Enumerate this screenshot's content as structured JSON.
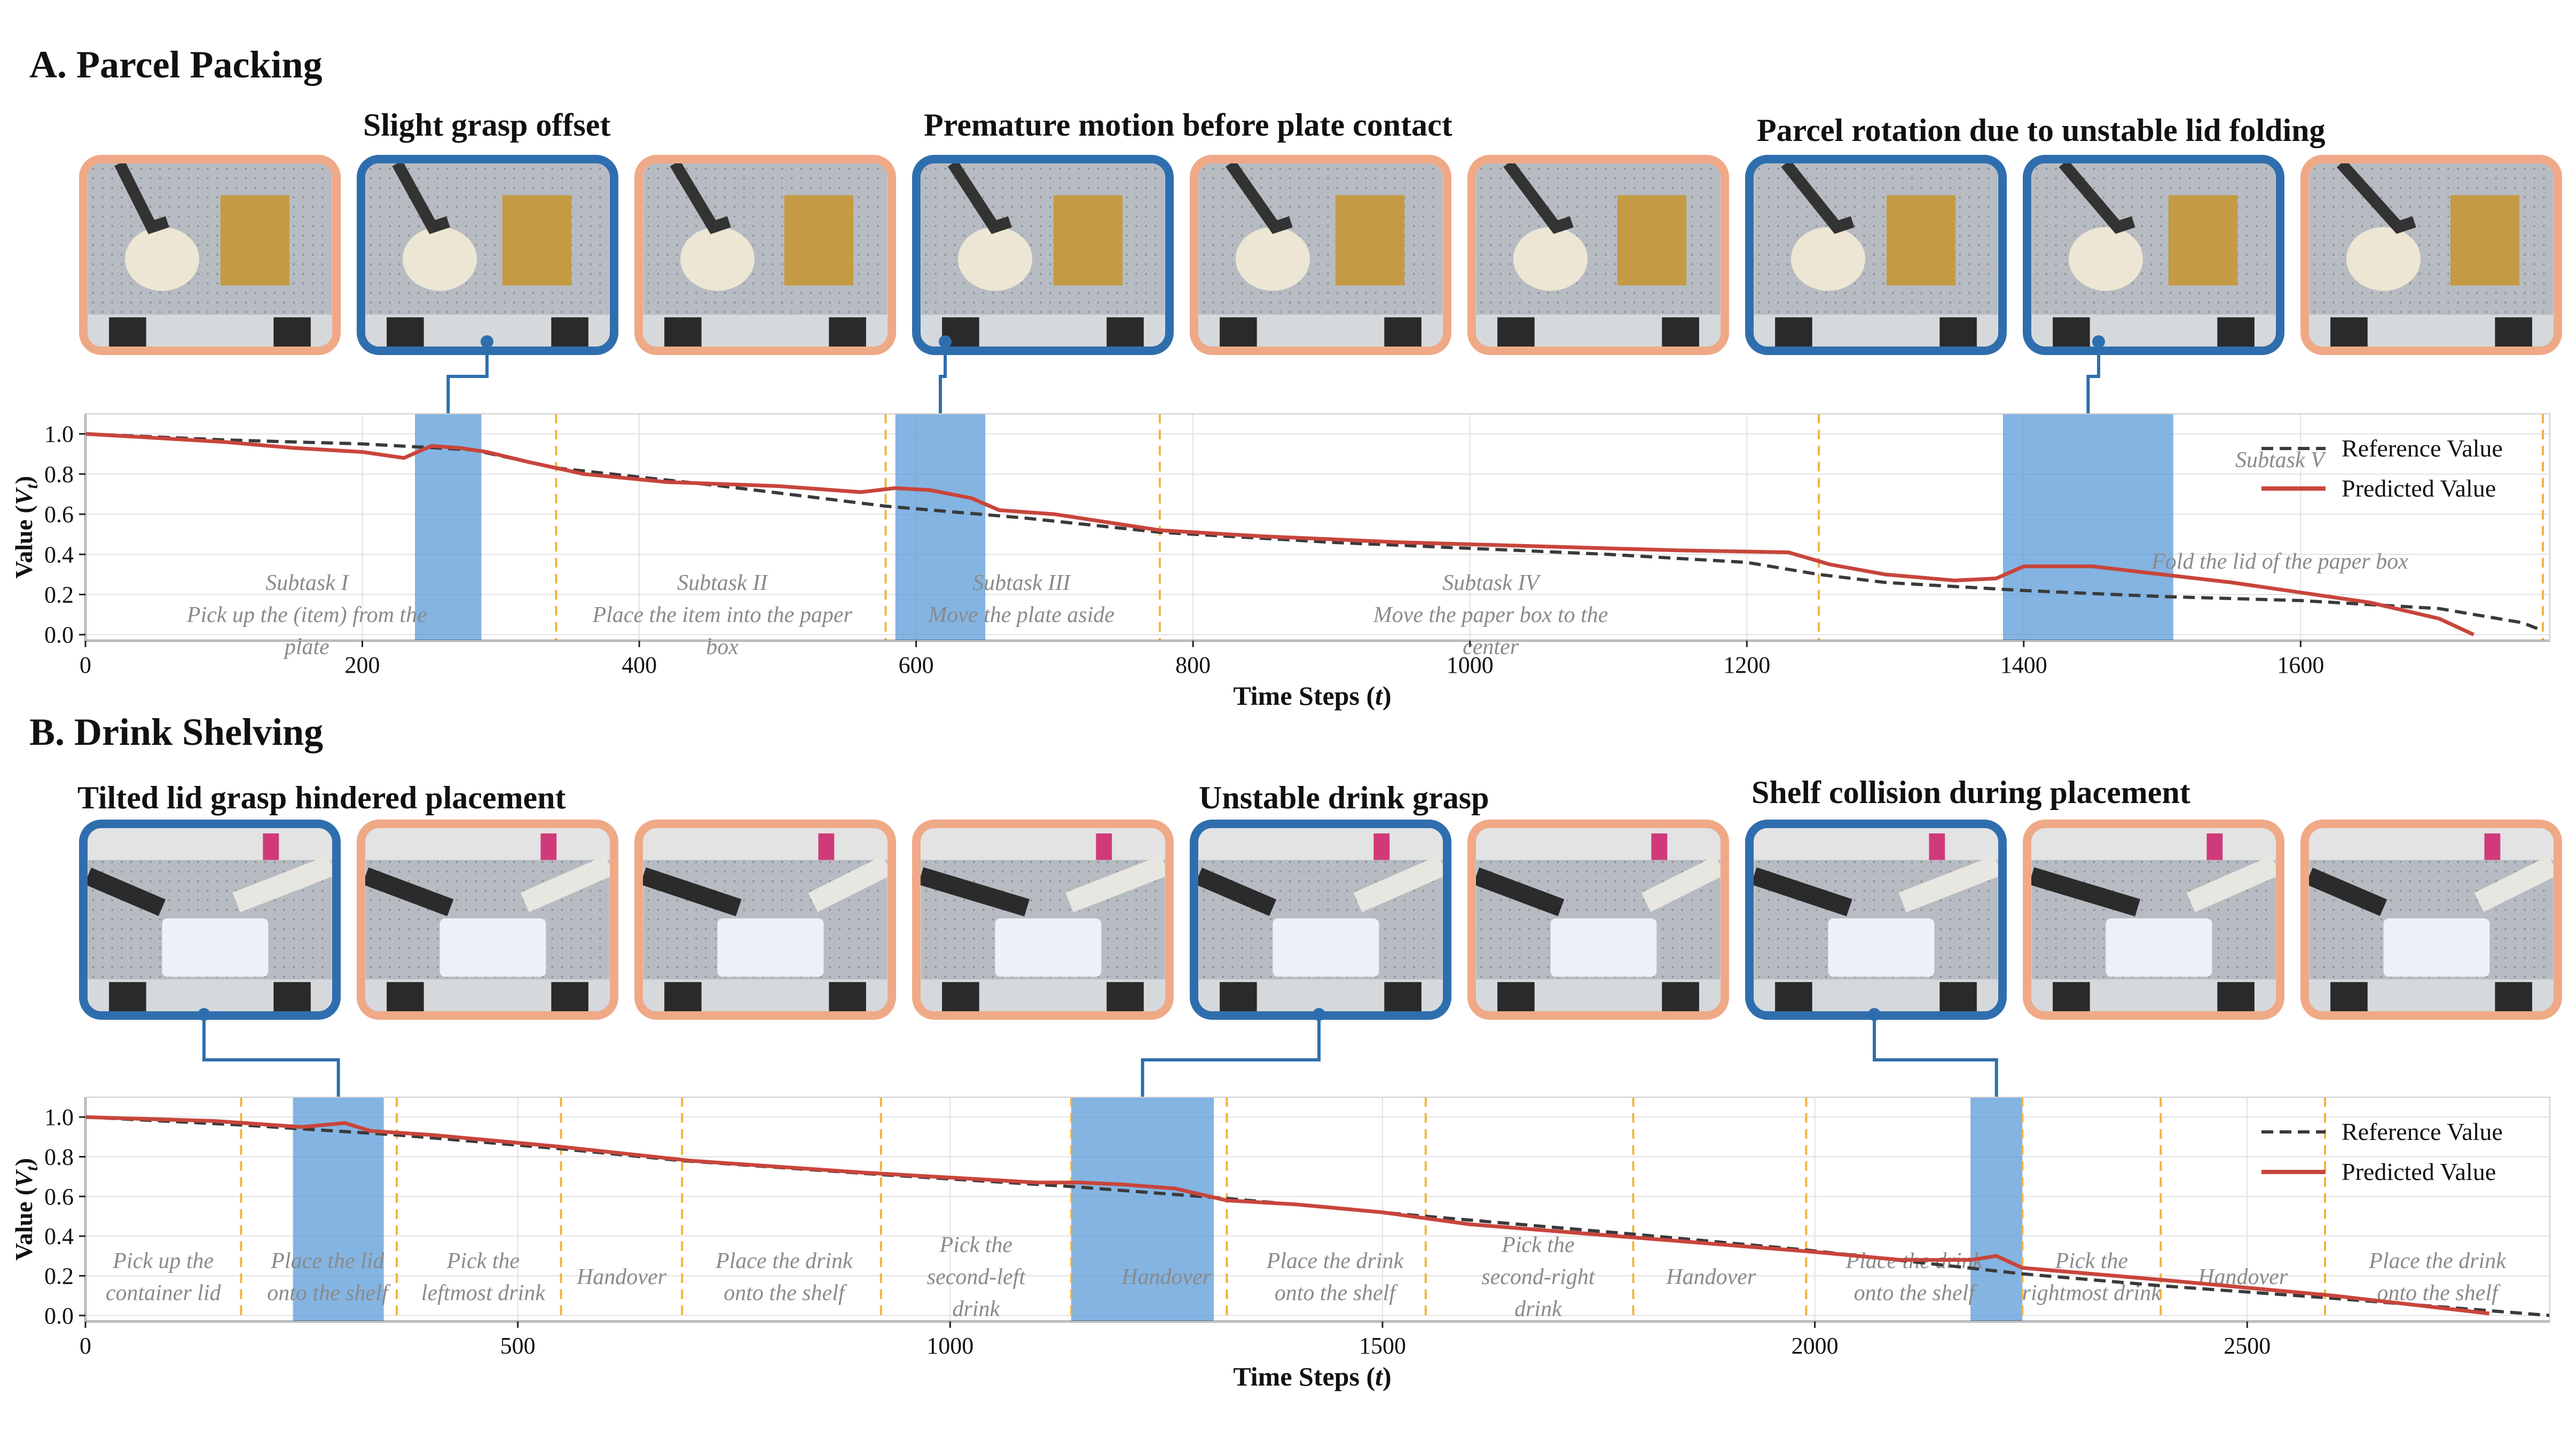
{
  "colors": {
    "reference": "#3a3a3a",
    "predicted": "#c8453b",
    "highlight": "#5b9bd8",
    "subtask_line": "#f2b33c",
    "blue_frame": "#2f6eae",
    "orange_frame": "#efa987"
  },
  "panels": [
    {
      "id": "A",
      "title": "A. Parcel Packing",
      "captions": [
        "Slight grasp offset",
        "Premature motion before plate contact",
        "Parcel rotation due to unstable lid folding"
      ],
      "frames": [
        "orange",
        "blue",
        "orange",
        "blue",
        "orange",
        "orange",
        "blue",
        "blue",
        "orange"
      ],
      "frame_icons": [
        "robot-arm-plate-box-icon",
        "robot-arm-grasp-icon",
        "robot-arm-plate-box-icon",
        "robot-arm-grasp-icon",
        "robot-arm-plate-box-icon",
        "robot-arm-box-center-icon",
        "robot-arm-lid-fold-icon",
        "robot-arm-lid-fold-icon",
        "robot-arm-lid-fold-icon"
      ],
      "chart_data": {
        "type": "line",
        "title": "",
        "xlabel": "Time Steps (t)",
        "ylabel": "Value (V_t)",
        "xlim": [
          0,
          1780
        ],
        "ylim": [
          -0.03,
          1.1
        ],
        "xticks": [
          0,
          200,
          400,
          600,
          800,
          1000,
          1200,
          1400,
          1600
        ],
        "yticks": [
          0.0,
          0.2,
          0.4,
          0.6,
          0.8,
          1.0
        ],
        "ytick_labels": [
          "0.0",
          "0.2",
          "0.4",
          "0.6",
          "0.8",
          "1.0"
        ],
        "legend": [
          "Reference Value",
          "Predicted Value"
        ],
        "legend_position": "top-right",
        "grid": true,
        "subtask_boundaries": [
          340,
          578,
          776,
          1252,
          1775
        ],
        "highlights": [
          [
            238,
            286
          ],
          [
            585,
            650
          ],
          [
            1385,
            1508
          ]
        ],
        "subtasks": [
          {
            "name": "Subtask I",
            "desc": "Pick up the (item) from the plate",
            "x": 160
          },
          {
            "name": "Subtask II",
            "desc": "Place the item into the paper box",
            "x": 460
          },
          {
            "name": "Subtask III",
            "desc": "Move the plate aside",
            "x": 676
          },
          {
            "name": "Subtask IV",
            "desc": "Move the paper box to the center",
            "x": 1015
          },
          {
            "name": "Subtask V",
            "desc": "Fold the lid of the paper box",
            "x": 1585
          }
        ],
        "series": [
          {
            "name": "Reference Value",
            "x": [
              0,
              100,
              200,
              280,
              340,
              460,
              578,
              680,
              776,
              900,
              1000,
              1100,
              1200,
              1252,
              1300,
              1400,
              1500,
              1600,
              1700,
              1760,
              1775
            ],
            "y": [
              1.0,
              0.97,
              0.95,
              0.92,
              0.83,
              0.74,
              0.64,
              0.58,
              0.51,
              0.46,
              0.43,
              0.4,
              0.36,
              0.3,
              0.26,
              0.22,
              0.19,
              0.17,
              0.13,
              0.06,
              0.02
            ]
          },
          {
            "name": "Predicted Value",
            "x": [
              0,
              50,
              100,
              150,
              200,
              230,
              250,
              270,
              290,
              320,
              360,
              420,
              500,
              560,
              585,
              610,
              640,
              660,
              700,
              776,
              850,
              950,
              1050,
              1150,
              1230,
              1260,
              1300,
              1350,
              1380,
              1400,
              1450,
              1500,
              1550,
              1600,
              1650,
              1700,
              1725
            ],
            "y": [
              1.0,
              0.98,
              0.96,
              0.93,
              0.91,
              0.88,
              0.94,
              0.93,
              0.91,
              0.86,
              0.8,
              0.76,
              0.74,
              0.71,
              0.73,
              0.72,
              0.68,
              0.62,
              0.6,
              0.52,
              0.49,
              0.46,
              0.44,
              0.42,
              0.41,
              0.35,
              0.3,
              0.27,
              0.28,
              0.34,
              0.34,
              0.3,
              0.26,
              0.21,
              0.16,
              0.08,
              0.0
            ]
          }
        ]
      }
    },
    {
      "id": "B",
      "title": "B. Drink Shelving",
      "captions": [
        "Tilted lid grasp hindered placement",
        "Unstable drink grasp",
        "Shelf collision during placement"
      ],
      "frames": [
        "blue",
        "orange",
        "orange",
        "orange",
        "blue",
        "orange",
        "blue",
        "orange",
        "orange"
      ],
      "frame_icons": [
        "robot-arm-lid-icon",
        "robot-arm-shelf-icon",
        "robot-arm-drink-icon",
        "robot-arm-handover-icon",
        "robot-arm-drink-icon",
        "robot-arm-handover-icon",
        "robot-arm-shelf-icon",
        "robot-arm-handover-icon",
        "robot-arm-shelf-icon"
      ],
      "chart_data": {
        "type": "line",
        "title": "",
        "xlabel": "Time Steps (t)",
        "ylabel": "Value (V_t)",
        "xlim": [
          0,
          2850
        ],
        "ylim": [
          -0.03,
          1.1
        ],
        "xticks": [
          0,
          500,
          1000,
          1500,
          2000,
          2500
        ],
        "yticks": [
          0.0,
          0.2,
          0.4,
          0.6,
          0.8,
          1.0
        ],
        "ytick_labels": [
          "0.0",
          "0.2",
          "0.4",
          "0.6",
          "0.8",
          "1.0"
        ],
        "legend": [
          "Reference Value",
          "Predicted Value"
        ],
        "legend_position": "top-right",
        "grid": true,
        "subtask_boundaries": [
          180,
          360,
          550,
          690,
          920,
          1140,
          1320,
          1550,
          1790,
          1990,
          2240,
          2400,
          2590
        ],
        "highlights": [
          [
            240,
            345
          ],
          [
            1140,
            1305
          ],
          [
            2180,
            2240
          ]
        ],
        "subtasks": [
          {
            "desc": "Pick up the container lid",
            "x": 90
          },
          {
            "desc": "Place the lid onto the shelf",
            "x": 280
          },
          {
            "desc": "Pick the leftmost drink",
            "x": 460
          },
          {
            "desc": "Handover",
            "x": 620
          },
          {
            "desc": "Place the drink onto the shelf",
            "x": 808
          },
          {
            "desc": "Pick the second-left drink",
            "x": 1030
          },
          {
            "desc": "Handover",
            "x": 1250
          },
          {
            "desc": "Place the drink onto the shelf",
            "x": 1445
          },
          {
            "desc": "Pick the second-right drink",
            "x": 1680
          },
          {
            "desc": "Handover",
            "x": 1880
          },
          {
            "desc": "Place the drink onto the shelf",
            "x": 2115
          },
          {
            "desc": "Pick the rightmost drink",
            "x": 2320
          },
          {
            "desc": "Handover",
            "x": 2495
          },
          {
            "desc": "Place the drink onto the shelf",
            "x": 2720
          }
        ],
        "series": [
          {
            "name": "Reference Value",
            "x": [
              0,
              180,
              360,
              550,
              690,
              920,
              1140,
              1320,
              1550,
              1790,
              1990,
              2240,
              2400,
              2590,
              2850
            ],
            "y": [
              1.0,
              0.96,
              0.91,
              0.84,
              0.78,
              0.71,
              0.65,
              0.59,
              0.5,
              0.41,
              0.33,
              0.21,
              0.15,
              0.09,
              0.0
            ]
          },
          {
            "name": "Predicted Value",
            "x": [
              0,
              150,
              250,
              300,
              330,
              400,
              550,
              700,
              900,
              1100,
              1150,
              1200,
              1260,
              1320,
              1400,
              1500,
              1600,
              1800,
              2000,
              2100,
              2180,
              2210,
              2240,
              2400,
              2600,
              2780
            ],
            "y": [
              1.0,
              0.98,
              0.95,
              0.97,
              0.93,
              0.91,
              0.85,
              0.78,
              0.72,
              0.67,
              0.67,
              0.66,
              0.64,
              0.58,
              0.56,
              0.52,
              0.46,
              0.39,
              0.32,
              0.28,
              0.28,
              0.3,
              0.24,
              0.18,
              0.1,
              0.01
            ]
          }
        ]
      }
    }
  ]
}
